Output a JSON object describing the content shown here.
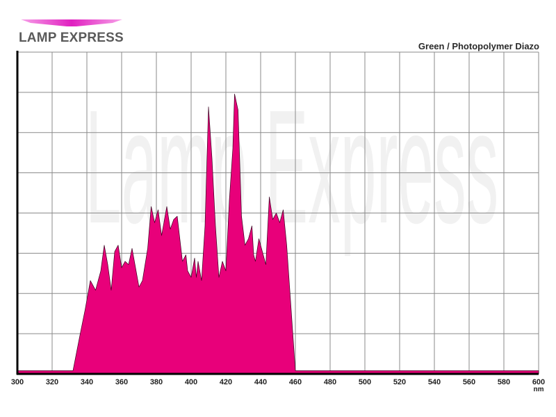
{
  "brand": {
    "name": "LAMP EXPRESS",
    "accent": "#e020c0"
  },
  "watermark": "Lamp Express",
  "chart_data": {
    "type": "area",
    "title": "Green / Photopolymer Diazo",
    "xlabel": "nm",
    "ylabel": "",
    "xlim": [
      300,
      600
    ],
    "ylim": [
      0,
      1
    ],
    "grid": true,
    "y_tick_labels": false,
    "x_ticks": [
      300,
      320,
      340,
      360,
      380,
      400,
      420,
      440,
      460,
      480,
      500,
      520,
      540,
      560,
      580,
      600
    ],
    "fill_color": "#e8007a",
    "series": [
      {
        "values": [
          [
            300,
            0.01
          ],
          [
            332,
            0.01
          ],
          [
            336,
            0.12
          ],
          [
            339,
            0.2
          ],
          [
            342,
            0.29
          ],
          [
            345,
            0.26
          ],
          [
            348,
            0.32
          ],
          [
            350,
            0.4
          ],
          [
            352,
            0.34
          ],
          [
            354,
            0.26
          ],
          [
            356,
            0.38
          ],
          [
            358,
            0.4
          ],
          [
            360,
            0.33
          ],
          [
            362,
            0.35
          ],
          [
            364,
            0.34
          ],
          [
            366,
            0.39
          ],
          [
            368,
            0.33
          ],
          [
            370,
            0.27
          ],
          [
            372,
            0.29
          ],
          [
            375,
            0.39
          ],
          [
            377,
            0.52
          ],
          [
            379,
            0.47
          ],
          [
            381,
            0.51
          ],
          [
            383,
            0.43
          ],
          [
            386,
            0.52
          ],
          [
            388,
            0.45
          ],
          [
            390,
            0.48
          ],
          [
            392,
            0.49
          ],
          [
            395,
            0.35
          ],
          [
            397,
            0.37
          ],
          [
            398,
            0.32
          ],
          [
            400,
            0.3
          ],
          [
            402,
            0.36
          ],
          [
            403,
            0.3
          ],
          [
            404,
            0.35
          ],
          [
            406,
            0.29
          ],
          [
            408,
            0.46
          ],
          [
            410,
            0.83
          ],
          [
            412,
            0.67
          ],
          [
            414,
            0.46
          ],
          [
            416,
            0.3
          ],
          [
            418,
            0.35
          ],
          [
            420,
            0.32
          ],
          [
            422,
            0.54
          ],
          [
            424,
            0.7
          ],
          [
            425,
            0.87
          ],
          [
            427,
            0.82
          ],
          [
            429,
            0.49
          ],
          [
            431,
            0.4
          ],
          [
            433,
            0.42
          ],
          [
            435,
            0.46
          ],
          [
            436,
            0.37
          ],
          [
            437,
            0.35
          ],
          [
            439,
            0.42
          ],
          [
            441,
            0.38
          ],
          [
            443,
            0.34
          ],
          [
            445,
            0.55
          ],
          [
            447,
            0.48
          ],
          [
            449,
            0.5
          ],
          [
            451,
            0.47
          ],
          [
            453,
            0.51
          ],
          [
            455,
            0.4
          ],
          [
            460,
            0.01
          ],
          [
            600,
            0.01
          ]
        ]
      }
    ]
  }
}
